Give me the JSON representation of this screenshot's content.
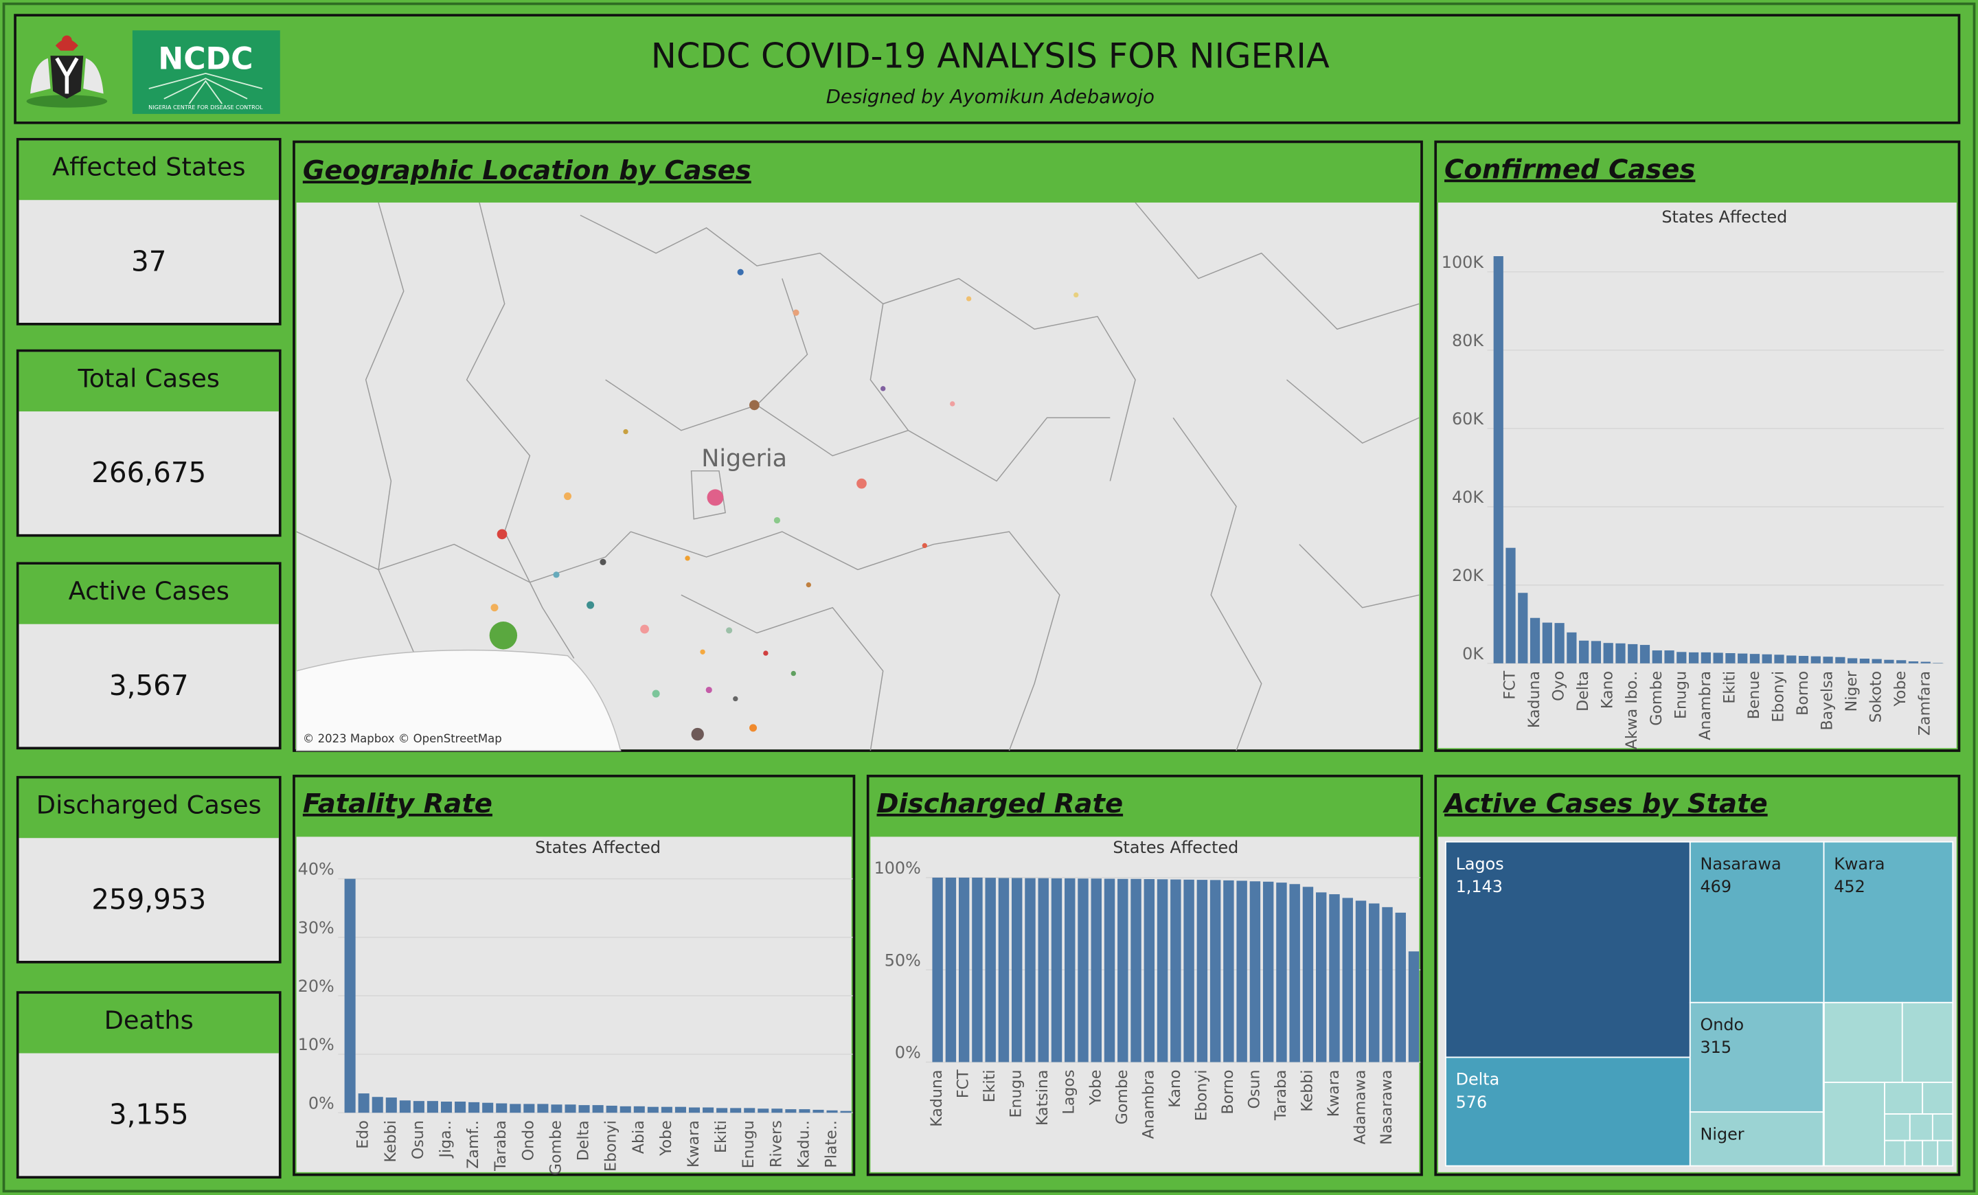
{
  "header": {
    "title": "NCDC COVID-19 ANALYSIS FOR NIGERIA",
    "subtitle": "Designed by Ayomikun Adebawojo",
    "logo_text": "NCDC",
    "logo_caption": "NIGERIA CENTRE FOR DISEASE CONTROL"
  },
  "kpis": [
    {
      "label": "Affected States",
      "value": "37"
    },
    {
      "label": "Total Cases",
      "value": "266,675"
    },
    {
      "label": "Active Cases",
      "value": "3,567"
    },
    {
      "label": "Discharged Cases",
      "value": "259,953"
    },
    {
      "label": "Deaths",
      "value": "3,155"
    }
  ],
  "map": {
    "title": "Geographic Location by Cases",
    "label": "Nigeria",
    "attribution": "© 2023 Mapbox © OpenStreetMap"
  },
  "chart_data": [
    {
      "type": "bar",
      "title": "Confirmed Cases",
      "subtitle": "States Affected",
      "color": "#4e79a7",
      "categories": [
        null,
        "FCT",
        null,
        "Kaduna",
        null,
        "Oyo",
        null,
        "Delta",
        null,
        "Kano",
        null,
        "Akwa Ibo..",
        null,
        "Gombe",
        null,
        "Enugu",
        null,
        "Anambra",
        null,
        "Ekiti",
        null,
        "Benue",
        null,
        "Ebonyi",
        null,
        "Borno",
        null,
        "Bayelsa",
        null,
        "Niger",
        null,
        "Sokoto",
        null,
        "Yobe",
        null,
        "Zamfara",
        null
      ],
      "values": [
        104000,
        29500,
        18000,
        11600,
        10400,
        10300,
        7900,
        5800,
        5700,
        5200,
        5100,
        4900,
        4700,
        3300,
        3300,
        2900,
        2800,
        2800,
        2700,
        2600,
        2500,
        2400,
        2300,
        2200,
        2000,
        1900,
        1800,
        1700,
        1600,
        1300,
        1200,
        1100,
        900,
        800,
        500,
        400,
        100
      ],
      "ylim": [
        0,
        108000
      ],
      "yticks": [
        {
          "value": 0,
          "label": "0K"
        },
        {
          "value": 20000,
          "label": "20K"
        },
        {
          "value": 40000,
          "label": "40K"
        },
        {
          "value": 60000,
          "label": "60K"
        },
        {
          "value": 80000,
          "label": "80K"
        },
        {
          "value": 100000,
          "label": "100K"
        }
      ],
      "grid": true
    },
    {
      "type": "bar",
      "title": "Fatality Rate",
      "subtitle": "States Affected",
      "color": "#4e79a7",
      "categories": [
        null,
        "Edo",
        null,
        "Kebbi",
        null,
        "Osun",
        null,
        "Jiga..",
        null,
        "Zamf..",
        null,
        "Taraba",
        null,
        "Ondo",
        null,
        "Gombe",
        null,
        "Delta",
        null,
        "Ebonyi",
        null,
        "Abia",
        null,
        "Yobe",
        null,
        "Kwara",
        null,
        "Ekiti",
        null,
        "Enugu",
        null,
        "Rivers",
        null,
        "Kadu..",
        null,
        "Plate..",
        null
      ],
      "values": [
        40,
        3.3,
        2.7,
        2.6,
        2.1,
        2.0,
        2.0,
        1.9,
        1.9,
        1.8,
        1.7,
        1.6,
        1.5,
        1.5,
        1.5,
        1.4,
        1.4,
        1.3,
        1.3,
        1.2,
        1.1,
        1.1,
        1.0,
        1.0,
        1.0,
        0.9,
        0.9,
        0.8,
        0.8,
        0.8,
        0.7,
        0.7,
        0.6,
        0.6,
        0.5,
        0.4,
        0.3
      ],
      "ylim": [
        0,
        42
      ],
      "yticks": [
        {
          "value": 0,
          "label": "0%"
        },
        {
          "value": 10,
          "label": "10%"
        },
        {
          "value": 20,
          "label": "20%"
        },
        {
          "value": 30,
          "label": "30%"
        },
        {
          "value": 40,
          "label": "40%"
        }
      ],
      "grid": true
    },
    {
      "type": "bar",
      "title": "Discharged Rate",
      "subtitle": "States Affected",
      "color": "#4e79a7",
      "categories": [
        "Kaduna",
        null,
        "FCT",
        null,
        "Ekiti",
        null,
        "Enugu",
        null,
        "Katsina",
        null,
        "Lagos",
        null,
        "Yobe",
        null,
        "Gombe",
        null,
        "Anambra",
        null,
        "Kano",
        null,
        "Ebonyi",
        null,
        "Borno",
        null,
        "Osun",
        null,
        "Taraba",
        null,
        "Kebbi",
        null,
        "Kwara",
        null,
        "Adamawa",
        null,
        "Nasarawa",
        null,
        null
      ],
      "values": [
        100,
        100,
        100,
        100,
        99.9,
        99.8,
        99.8,
        99.7,
        99.7,
        99.6,
        99.6,
        99.5,
        99.5,
        99.4,
        99.3,
        99.3,
        99.2,
        99.1,
        99,
        98.9,
        98.8,
        98.7,
        98.5,
        98.3,
        98,
        97.8,
        97.3,
        96.5,
        95,
        92,
        91,
        89,
        87.5,
        86,
        84,
        81,
        60
      ],
      "ylim": [
        0,
        105
      ],
      "yticks": [
        {
          "value": 0,
          "label": "0%"
        },
        {
          "value": 50,
          "label": "50%"
        },
        {
          "value": 100,
          "label": "100%"
        }
      ],
      "grid": true
    },
    {
      "type": "treemap",
      "title": "Active Cases by State",
      "categories": [
        "Lagos",
        "Nasarawa",
        "Kwara",
        "Delta",
        "Ondo",
        "Niger"
      ],
      "values": [
        1143,
        469,
        452,
        576,
        315,
        155
      ],
      "value_labels": [
        "1,143",
        "469",
        "452",
        "576",
        "315",
        null
      ],
      "colors": [
        "#2b5b88",
        "#5fb0c4",
        "#64b4c7",
        "#47a0bc",
        "#7ec2cd",
        "#9bd3d3"
      ]
    }
  ]
}
